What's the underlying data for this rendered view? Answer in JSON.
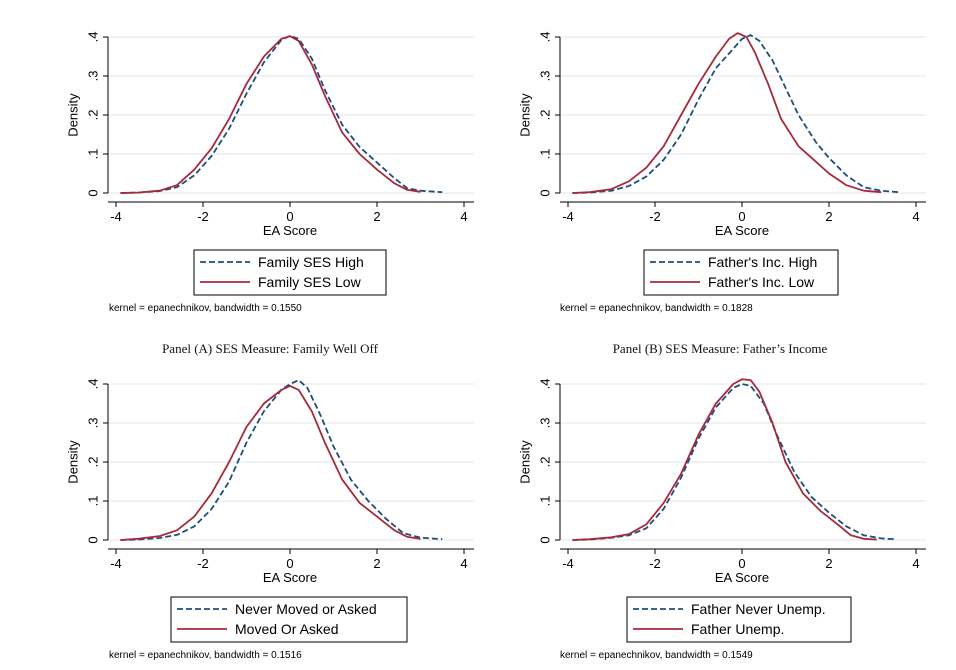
{
  "chart_data": [
    {
      "type": "line",
      "xlabel": "EA Score",
      "ylabel": "Density",
      "xlim": [
        -4,
        4
      ],
      "ylim": [
        0,
        0.4
      ],
      "xticks": [
        "-4",
        "-2",
        "0",
        "2",
        "4"
      ],
      "yticks": [
        "0",
        ".1",
        ".2",
        ".3",
        ".4"
      ],
      "grid": true,
      "legend_position": "bottom",
      "note": "kernel = epanechnikov, bandwidth = 0.1550",
      "caption": "Panel (A) SES Measure: Family Well Off",
      "series": [
        {
          "name": "Family SES High",
          "color": "#1f4e79",
          "style": "dashed",
          "x": [
            -3.9,
            -3.5,
            -3,
            -2.6,
            -2.2,
            -1.8,
            -1.4,
            -1,
            -0.6,
            -0.2,
            0,
            0.2,
            0.5,
            0.8,
            1.2,
            1.6,
            2,
            2.4,
            2.7,
            3,
            3.5
          ],
          "y": [
            0,
            0.001,
            0.005,
            0.015,
            0.045,
            0.095,
            0.165,
            0.255,
            0.335,
            0.392,
            0.403,
            0.395,
            0.345,
            0.265,
            0.175,
            0.118,
            0.078,
            0.038,
            0.012,
            0.006,
            0.002
          ]
        },
        {
          "name": "Family SES Low",
          "color": "#a52a3a",
          "style": "solid",
          "x": [
            -3.9,
            -3.5,
            -3,
            -2.6,
            -2.2,
            -1.8,
            -1.4,
            -1,
            -0.6,
            -0.2,
            0,
            0.2,
            0.5,
            0.8,
            1.2,
            1.6,
            2,
            2.4,
            2.7,
            3
          ],
          "y": [
            0,
            0.001,
            0.006,
            0.02,
            0.06,
            0.115,
            0.19,
            0.28,
            0.35,
            0.395,
            0.402,
            0.39,
            0.33,
            0.25,
            0.155,
            0.1,
            0.06,
            0.025,
            0.008,
            0.003
          ]
        }
      ]
    },
    {
      "type": "line",
      "xlabel": "EA Score",
      "ylabel": "Density",
      "xlim": [
        -4,
        4
      ],
      "ylim": [
        0,
        0.4
      ],
      "xticks": [
        "-4",
        "-2",
        "0",
        "2",
        "4"
      ],
      "yticks": [
        "0",
        ".1",
        ".2",
        ".3",
        ".4"
      ],
      "grid": true,
      "legend_position": "bottom",
      "note": "kernel = epanechnikov, bandwidth = 0.1828",
      "caption": "Panel (B) SES Measure: Father’s Income",
      "series": [
        {
          "name": "Father's Inc. High",
          "color": "#1f4e79",
          "style": "dashed",
          "x": [
            -3.9,
            -3.5,
            -3,
            -2.6,
            -2.2,
            -1.8,
            -1.4,
            -1,
            -0.6,
            -0.2,
            0,
            0.2,
            0.4,
            0.7,
            1,
            1.3,
            1.7,
            2,
            2.4,
            2.8,
            3.2,
            3.6
          ],
          "y": [
            0,
            0.001,
            0.006,
            0.018,
            0.042,
            0.085,
            0.15,
            0.24,
            0.32,
            0.37,
            0.395,
            0.405,
            0.39,
            0.34,
            0.27,
            0.2,
            0.13,
            0.09,
            0.045,
            0.015,
            0.006,
            0.002
          ]
        },
        {
          "name": "Father's Inc. Low",
          "color": "#a52a3a",
          "style": "solid",
          "x": [
            -3.9,
            -3.5,
            -3,
            -2.6,
            -2.2,
            -1.8,
            -1.4,
            -1,
            -0.6,
            -0.3,
            -0.1,
            0.1,
            0.3,
            0.6,
            0.9,
            1.3,
            1.7,
            2,
            2.4,
            2.8,
            3.2
          ],
          "y": [
            0,
            0.002,
            0.01,
            0.03,
            0.065,
            0.12,
            0.2,
            0.28,
            0.35,
            0.395,
            0.41,
            0.4,
            0.36,
            0.28,
            0.19,
            0.12,
            0.08,
            0.05,
            0.02,
            0.006,
            0.002
          ]
        }
      ]
    },
    {
      "type": "line",
      "xlabel": "EA Score",
      "ylabel": "Density",
      "xlim": [
        -4,
        4
      ],
      "ylim": [
        0,
        0.4
      ],
      "xticks": [
        "-4",
        "-2",
        "0",
        "2",
        "4"
      ],
      "yticks": [
        "0",
        ".1",
        ".2",
        ".3",
        ".4"
      ],
      "grid": true,
      "legend_position": "bottom",
      "note": "kernel = epanechnikov, bandwidth = 0.1516",
      "caption": "",
      "series": [
        {
          "name": "Never Moved or Asked",
          "color": "#1f4e79",
          "style": "dashed",
          "x": [
            -3.9,
            -3.5,
            -3,
            -2.6,
            -2.2,
            -1.8,
            -1.4,
            -1,
            -0.6,
            -0.2,
            0,
            0.2,
            0.4,
            0.7,
            1,
            1.4,
            1.8,
            2.2,
            2.6,
            3,
            3.5
          ],
          "y": [
            0,
            0.001,
            0.005,
            0.013,
            0.035,
            0.08,
            0.15,
            0.25,
            0.33,
            0.385,
            0.4,
            0.41,
            0.39,
            0.32,
            0.24,
            0.155,
            0.1,
            0.055,
            0.018,
            0.006,
            0.002
          ]
        },
        {
          "name": "Moved Or Asked",
          "color": "#a52a3a",
          "style": "solid",
          "x": [
            -3.9,
            -3.5,
            -3,
            -2.6,
            -2.2,
            -1.8,
            -1.4,
            -1,
            -0.6,
            -0.2,
            0,
            0.2,
            0.5,
            0.8,
            1.2,
            1.6,
            2,
            2.4,
            2.7,
            3
          ],
          "y": [
            0,
            0.003,
            0.01,
            0.025,
            0.06,
            0.12,
            0.2,
            0.29,
            0.35,
            0.385,
            0.395,
            0.385,
            0.33,
            0.25,
            0.155,
            0.095,
            0.06,
            0.025,
            0.008,
            0.003
          ]
        }
      ]
    },
    {
      "type": "line",
      "xlabel": "EA Score",
      "ylabel": "Density",
      "xlim": [
        -4,
        4
      ],
      "ylim": [
        0,
        0.4
      ],
      "xticks": [
        "-4",
        "-2",
        "0",
        "2",
        "4"
      ],
      "yticks": [
        "0",
        ".1",
        ".2",
        ".3",
        ".4"
      ],
      "grid": true,
      "legend_position": "bottom",
      "note": "kernel = epanechnikov, bandwidth = 0.1549",
      "caption": "",
      "series": [
        {
          "name": "Father Never Unemp.",
          "color": "#1f4e79",
          "style": "dashed",
          "x": [
            -3.9,
            -3.5,
            -3,
            -2.6,
            -2.2,
            -1.8,
            -1.4,
            -1,
            -0.6,
            -0.2,
            0,
            0.2,
            0.5,
            0.8,
            1.2,
            1.6,
            2,
            2.4,
            2.8,
            3.2,
            3.5
          ],
          "y": [
            0,
            0.001,
            0.006,
            0.012,
            0.03,
            0.08,
            0.16,
            0.26,
            0.34,
            0.39,
            0.4,
            0.395,
            0.35,
            0.27,
            0.175,
            0.11,
            0.07,
            0.035,
            0.012,
            0.004,
            0.002
          ]
        },
        {
          "name": "Father Unemp.",
          "color": "#a52a3a",
          "style": "solid",
          "x": [
            -3.9,
            -3.5,
            -3,
            -2.6,
            -2.2,
            -1.8,
            -1.4,
            -1,
            -0.6,
            -0.2,
            0,
            0.2,
            0.4,
            0.7,
            1,
            1.4,
            1.8,
            2.2,
            2.5,
            2.8,
            3.1
          ],
          "y": [
            0,
            0.002,
            0.007,
            0.015,
            0.04,
            0.095,
            0.17,
            0.27,
            0.35,
            0.4,
            0.412,
            0.41,
            0.38,
            0.3,
            0.2,
            0.12,
            0.075,
            0.04,
            0.012,
            0.003,
            0.001
          ]
        }
      ]
    }
  ]
}
